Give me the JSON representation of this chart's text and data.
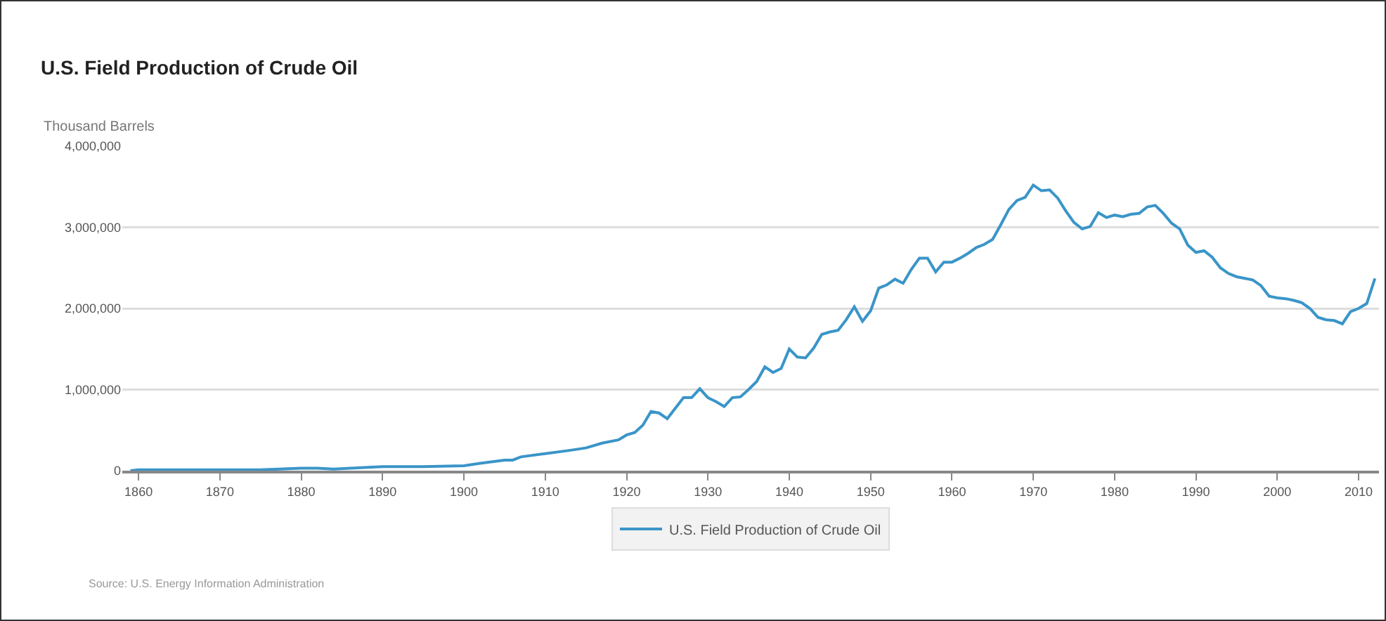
{
  "chart_data": {
    "type": "line",
    "title": "U.S. Field Production of Crude Oil",
    "ylabel": "Thousand Barrels",
    "annotations": [
      "Source: U.S. Energy Information Administration"
    ],
    "x": [
      1859,
      1860,
      1865,
      1870,
      1875,
      1880,
      1882,
      1884,
      1886,
      1890,
      1895,
      1900,
      1902,
      1905,
      1906,
      1907,
      1910,
      1913,
      1915,
      1917,
      1919,
      1920,
      1921,
      1922,
      1923,
      1924,
      1925,
      1926,
      1927,
      1928,
      1929,
      1930,
      1931,
      1932,
      1933,
      1934,
      1935,
      1936,
      1937,
      1938,
      1939,
      1940,
      1941,
      1942,
      1943,
      1944,
      1945,
      1946,
      1947,
      1948,
      1949,
      1950,
      1951,
      1952,
      1953,
      1954,
      1955,
      1956,
      1957,
      1958,
      1959,
      1960,
      1961,
      1962,
      1963,
      1964,
      1965,
      1966,
      1967,
      1968,
      1969,
      1970,
      1971,
      1972,
      1973,
      1974,
      1975,
      1976,
      1977,
      1978,
      1979,
      1980,
      1981,
      1982,
      1983,
      1984,
      1985,
      1986,
      1987,
      1988,
      1989,
      1990,
      1991,
      1992,
      1993,
      1994,
      1995,
      1996,
      1997,
      1998,
      1999,
      2000,
      2001,
      2002,
      2003,
      2004,
      2005,
      2006,
      2007,
      2008,
      2009,
      2010,
      2011,
      2012
    ],
    "series": [
      {
        "name": "U.S. Field Production of Crude Oil",
        "color": "#3a95c8",
        "values": [
          0,
          10000,
          10000,
          10000,
          10000,
          30000,
          30000,
          20000,
          30000,
          50000,
          50000,
          60000,
          90000,
          130000,
          130000,
          170000,
          210000,
          250000,
          280000,
          340000,
          380000,
          440000,
          470000,
          560000,
          730000,
          710000,
          640000,
          770000,
          900000,
          900000,
          1010000,
          900000,
          850000,
          790000,
          900000,
          910000,
          1000000,
          1100000,
          1280000,
          1210000,
          1260000,
          1500000,
          1400000,
          1390000,
          1510000,
          1680000,
          1710000,
          1730000,
          1860000,
          2020000,
          1840000,
          1970000,
          2250000,
          2290000,
          2360000,
          2310000,
          2480000,
          2620000,
          2620000,
          2450000,
          2570000,
          2570000,
          2620000,
          2680000,
          2750000,
          2790000,
          2850000,
          3030000,
          3220000,
          3330000,
          3370000,
          3520000,
          3450000,
          3460000,
          3360000,
          3200000,
          3060000,
          2980000,
          3010000,
          3180000,
          3120000,
          3150000,
          3130000,
          3160000,
          3170000,
          3250000,
          3270000,
          3170000,
          3050000,
          2980000,
          2780000,
          2690000,
          2710000,
          2630000,
          2500000,
          2430000,
          2390000,
          2370000,
          2350000,
          2280000,
          2150000,
          2130000,
          2120000,
          2100000,
          2070000,
          2000000,
          1890000,
          1860000,
          1850000,
          1810000,
          1960000,
          2000000,
          2060000,
          2370000
        ]
      }
    ],
    "xlim": [
      1858,
      2012.5
    ],
    "xticks": [
      1860,
      1870,
      1880,
      1890,
      1900,
      1910,
      1920,
      1930,
      1940,
      1950,
      1960,
      1970,
      1980,
      1990,
      2000,
      2010
    ],
    "ylim": [
      0,
      4000000
    ],
    "yticks": [
      {
        "value": 0,
        "label": "0"
      },
      {
        "value": 1000000,
        "label": "1,000,000"
      },
      {
        "value": 2000000,
        "label": "2,000,000"
      },
      {
        "value": 3000000,
        "label": "3,000,000"
      },
      {
        "value": 4000000,
        "label": "4,000,000"
      }
    ],
    "grid": "y",
    "legend": "bottom",
    "marker": "none",
    "line_style": "solid"
  }
}
